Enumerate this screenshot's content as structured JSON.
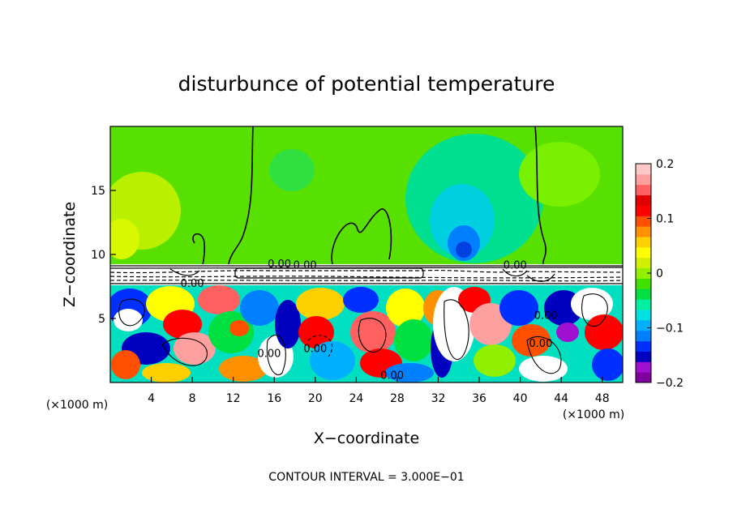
{
  "chart_data": {
    "type": "heatmap",
    "title": "disturbunce of potential temperature",
    "xlabel": "X−coordinate",
    "ylabel": "Z−coordinate",
    "x_unit": "(×1000 m)",
    "y_unit": "(×1000 m)",
    "xlim": [
      0,
      50
    ],
    "ylim": [
      0,
      20
    ],
    "x_ticks": [
      4,
      8,
      12,
      16,
      20,
      24,
      28,
      32,
      36,
      40,
      44,
      48
    ],
    "y_ticks": [
      5,
      10,
      15
    ],
    "grid": false,
    "footer": "CONTOUR INTERVAL = 3.000E−01",
    "colorbar": {
      "range": [
        -0.2,
        0.2
      ],
      "tick_values": [
        0.2,
        0.1,
        0,
        -0.1,
        -0.2
      ],
      "tick_labels": [
        "0.2",
        "0.1",
        "0",
        "−0.1",
        "−0.2"
      ],
      "colors": [
        "#8000a0",
        "#a010d0",
        "#0000c0",
        "#0030ff",
        "#0080ff",
        "#00b0ff",
        "#00e0e0",
        "#00f0a0",
        "#00e040",
        "#40e000",
        "#90f000",
        "#d0f000",
        "#ffff00",
        "#ffd000",
        "#ff9000",
        "#ff5000",
        "#ff0000",
        "#e00000",
        "#ff6060",
        "#ffa0a0",
        "#ffc8c8"
      ]
    },
    "contour_labels": [
      {
        "text": "0.00",
        "x": 19.0,
        "z": 9.2
      },
      {
        "text": "0.00",
        "x": 16.5,
        "z": 9.3
      },
      {
        "text": "0.00",
        "x": 8.0,
        "z": 7.8
      },
      {
        "text": "0.00",
        "x": 39.5,
        "z": 9.2
      },
      {
        "text": "0.00",
        "x": 42.5,
        "z": 5.3
      },
      {
        "text": "0.00",
        "x": 42.0,
        "z": 3.1
      },
      {
        "text": "0.00",
        "x": 15.5,
        "z": 2.3
      },
      {
        "text": "0.00",
        "x": 20.0,
        "z": 2.7
      },
      {
        "text": "0.00",
        "x": 27.5,
        "z": 0.6
      }
    ]
  }
}
